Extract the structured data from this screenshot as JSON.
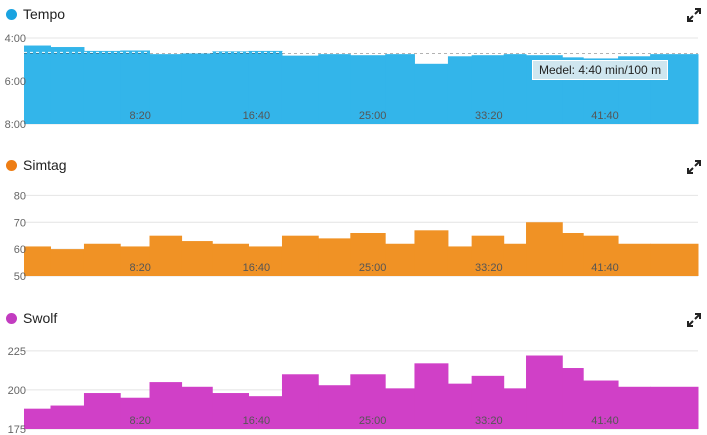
{
  "chart_data": [
    {
      "type": "area",
      "title": "Tempo",
      "color": "#33b5ea",
      "dot_color": "#1aa3e0",
      "inverted_y": true,
      "ylim": [
        4.0,
        8.0
      ],
      "ytick_labels": [
        "4:00",
        "6:00",
        "8:00"
      ],
      "ytick_values": [
        4.0,
        6.0,
        8.0
      ],
      "xtick_labels": [
        "8:20",
        "16:40",
        "25:00",
        "33:20",
        "41:40"
      ],
      "xtick_values": [
        8.333,
        16.667,
        25.0,
        33.333,
        41.667
      ],
      "xlim": [
        0,
        48.333
      ],
      "segment_edges": [
        0,
        1.9,
        4.3,
        6.9,
        9.0,
        11.3,
        13.5,
        16.1,
        18.5,
        21.1,
        23.4,
        25.9,
        28.0,
        30.4,
        32.1,
        34.4,
        36.0,
        38.6,
        40.1,
        42.6,
        44.9,
        48.333
      ],
      "values": [
        4.35,
        4.42,
        4.6,
        4.58,
        4.75,
        4.72,
        4.62,
        4.6,
        4.82,
        4.75,
        4.8,
        4.75,
        5.2,
        4.85,
        4.8,
        4.75,
        4.8,
        4.9,
        4.95,
        4.85,
        4.75
      ],
      "average_value": 4.667,
      "tooltip": "Medel: 4:40 min/100 m"
    },
    {
      "type": "area",
      "title": "Simtag",
      "color": "#f09225",
      "dot_color": "#ee7d14",
      "ylim": [
        50,
        82
      ],
      "ytick_labels": [
        "50",
        "60",
        "70",
        "80"
      ],
      "ytick_values": [
        50,
        60,
        70,
        80
      ],
      "xtick_labels": [
        "8:20",
        "16:40",
        "25:00",
        "33:20",
        "41:40"
      ],
      "xtick_values": [
        8.333,
        16.667,
        25.0,
        33.333,
        41.667
      ],
      "xlim": [
        0,
        48.333
      ],
      "segment_edges": [
        0,
        1.9,
        4.3,
        6.9,
        9.0,
        11.3,
        13.5,
        16.1,
        18.5,
        21.1,
        23.4,
        25.9,
        28.0,
        30.4,
        32.1,
        34.4,
        36.0,
        38.6,
        40.1,
        42.6,
        44.9,
        48.333
      ],
      "values": [
        61,
        60,
        62,
        61,
        65,
        63,
        62,
        61,
        65,
        64,
        66,
        62,
        67,
        61,
        65,
        62,
        70,
        66,
        65,
        62,
        62
      ]
    },
    {
      "type": "area",
      "title": "Swolf",
      "color": "#d040c7",
      "dot_color": "#c23cc0",
      "ylim": [
        175,
        230
      ],
      "ytick_labels": [
        "175",
        "200",
        "225"
      ],
      "ytick_values": [
        175,
        200,
        225
      ],
      "xtick_labels": [
        "8:20",
        "16:40",
        "25:00",
        "33:20",
        "41:40"
      ],
      "xtick_values": [
        8.333,
        16.667,
        25.0,
        33.333,
        41.667
      ],
      "xlim": [
        0,
        48.333
      ],
      "segment_edges": [
        0,
        1.9,
        4.3,
        6.9,
        9.0,
        11.3,
        13.5,
        16.1,
        18.5,
        21.1,
        23.4,
        25.9,
        28.0,
        30.4,
        32.1,
        34.4,
        36.0,
        38.6,
        40.1,
        42.6,
        44.9,
        48.333
      ],
      "values": [
        188,
        190,
        198,
        195,
        205,
        202,
        198,
        196,
        210,
        203,
        210,
        201,
        217,
        204,
        209,
        201,
        222,
        214,
        206,
        202,
        202
      ]
    }
  ]
}
